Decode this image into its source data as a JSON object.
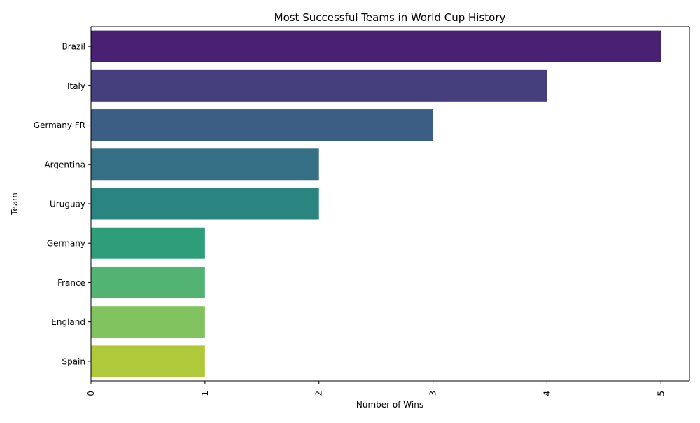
{
  "chart_data": {
    "type": "bar",
    "orientation": "horizontal",
    "title": "Most Successful Teams in World Cup History",
    "xlabel": "Number of Wins",
    "ylabel": "Team",
    "categories": [
      "Brazil",
      "Italy",
      "Germany FR",
      "Argentina",
      "Uruguay",
      "Germany",
      "France",
      "England",
      "Spain"
    ],
    "values": [
      5,
      4,
      3,
      2,
      2,
      1,
      1,
      1,
      1
    ],
    "xlim": [
      0,
      5.25
    ],
    "xticks": [
      "0",
      "1",
      "2",
      "3",
      "4",
      "5"
    ],
    "grid": false,
    "legend": "none",
    "colors": [
      "#482172",
      "#453f7e",
      "#3d5e84",
      "#356f86",
      "#2a8581",
      "#2d9e79",
      "#52b372",
      "#80c35f",
      "#b0c93b"
    ]
  }
}
